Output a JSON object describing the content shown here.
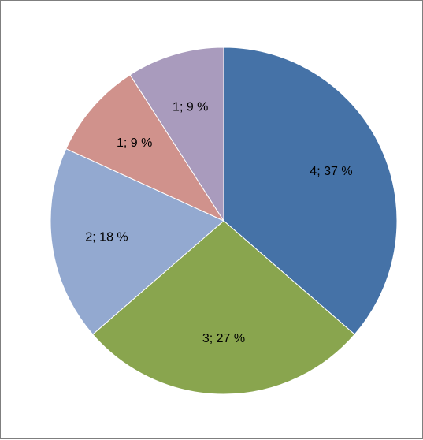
{
  "chart_data": {
    "type": "pie",
    "slices": [
      {
        "value": 4,
        "label": "4; 37 %",
        "color": "#4572A7"
      },
      {
        "value": 3,
        "label": "3; 27 %",
        "color": "#89A54E"
      },
      {
        "value": 2,
        "label": "2; 18 %",
        "color": "#93A9D0"
      },
      {
        "value": 1,
        "label": "1; 9 %",
        "color": "#D0928C"
      },
      {
        "value": 1,
        "label": "1; 9 %",
        "color": "#A99BBD"
      }
    ],
    "start_angle_deg": 0,
    "direction": "clockwise",
    "legend": "none"
  }
}
